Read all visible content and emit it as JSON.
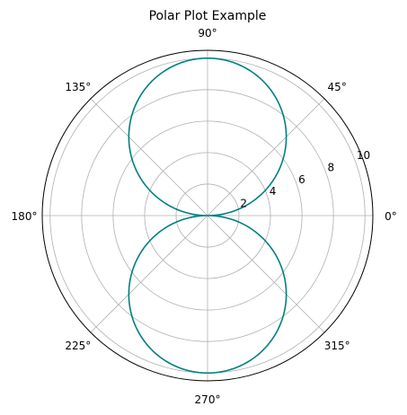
{
  "chart_data": {
    "type": "line",
    "projection": "polar",
    "title": "Polar Plot Example",
    "theta_unit": "degrees",
    "theta_ticks": [
      "0°",
      "45°",
      "90°",
      "135°",
      "180°",
      "225°",
      "270°",
      "315°"
    ],
    "r_ticks": [
      "2",
      "4",
      "6",
      "8",
      "10"
    ],
    "rlim": [
      0,
      10.5
    ],
    "grid": true,
    "series": [
      {
        "function": "r = 10·|sin θ|",
        "theta_range_deg": [
          0,
          360
        ],
        "amplitude": 10,
        "color": "#008080"
      }
    ]
  }
}
